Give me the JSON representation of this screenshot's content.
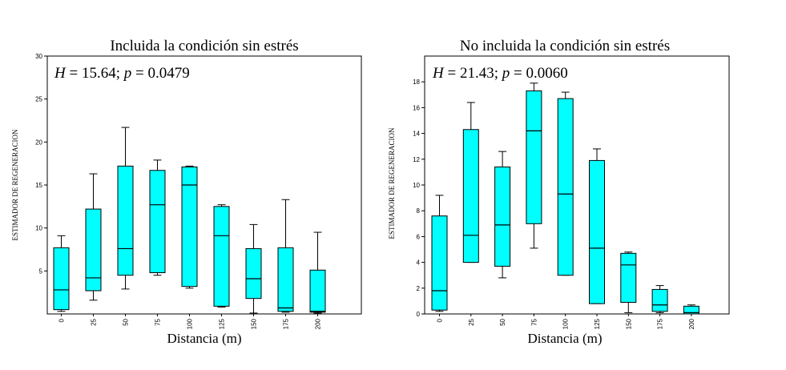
{
  "chart_data": [
    {
      "type": "boxplot",
      "title": "Incluida la condición sin estrés",
      "stat_H": "15.64",
      "stat_p": "0.0479",
      "xlabel": "Distancia  (m)",
      "ylabel": "ESTIMADOR DE REGENERACION",
      "ylim": [
        0,
        30
      ],
      "yticks": [
        5,
        10,
        15,
        20,
        25,
        30
      ],
      "categories": [
        "0",
        "25",
        "50",
        "75",
        "100",
        "125",
        "150",
        "175",
        "200"
      ],
      "boxes": [
        {
          "min": 0.3,
          "q1": 0.5,
          "median": 2.8,
          "q3": 7.7,
          "max": 9.1
        },
        {
          "min": 1.6,
          "q1": 2.7,
          "median": 4.2,
          "q3": 12.2,
          "max": 16.3
        },
        {
          "min": 2.9,
          "q1": 4.5,
          "median": 7.6,
          "q3": 17.2,
          "max": 21.7
        },
        {
          "min": 4.5,
          "q1": 4.8,
          "median": 12.7,
          "q3": 16.7,
          "max": 17.9
        },
        {
          "min": 3.0,
          "q1": 3.2,
          "median": 15.0,
          "q3": 17.1,
          "max": 17.2
        },
        {
          "min": 0.8,
          "q1": 0.9,
          "median": 9.1,
          "q3": 12.5,
          "max": 12.7
        },
        {
          "min": 0.1,
          "q1": 1.8,
          "median": 4.1,
          "q3": 7.6,
          "max": 10.4
        },
        {
          "min": 0.2,
          "q1": 0.3,
          "median": 0.7,
          "q3": 7.7,
          "max": 13.3
        },
        {
          "min": 0.1,
          "q1": 0.2,
          "median": 0.3,
          "q3": 5.1,
          "max": 9.5
        }
      ]
    },
    {
      "type": "boxplot",
      "title": "No incluida la condición sin estrés",
      "stat_H": "21.43",
      "stat_p": "0.0060",
      "xlabel": "Distancia  (m)",
      "ylabel": "ESTIMADOR DE REGENERACION",
      "ylim": [
        0,
        20
      ],
      "yticks": [
        0,
        2,
        4,
        6,
        8,
        10,
        12,
        14,
        16,
        18
      ],
      "categories": [
        "0",
        "25",
        "50",
        "75",
        "100",
        "125",
        "150",
        "175",
        "200"
      ],
      "boxes": [
        {
          "min": 0.2,
          "q1": 0.3,
          "median": 1.8,
          "q3": 7.6,
          "max": 9.2
        },
        {
          "min": 4.0,
          "q1": 4.0,
          "median": 6.1,
          "q3": 14.3,
          "max": 16.4
        },
        {
          "min": 2.8,
          "q1": 3.7,
          "median": 6.9,
          "q3": 11.4,
          "max": 12.6
        },
        {
          "min": 5.1,
          "q1": 7.0,
          "median": 14.2,
          "q3": 17.3,
          "max": 17.9
        },
        {
          "min": 3.0,
          "q1": 3.0,
          "median": 9.3,
          "q3": 16.7,
          "max": 17.2
        },
        {
          "min": 0.8,
          "q1": 0.8,
          "median": 5.1,
          "q3": 11.9,
          "max": 12.8
        },
        {
          "min": 0.1,
          "q1": 0.9,
          "median": 3.8,
          "q3": 4.7,
          "max": 4.8
        },
        {
          "min": 0.1,
          "q1": 0.2,
          "median": 0.7,
          "q3": 1.9,
          "max": 2.2
        },
        {
          "min": 0.0,
          "q1": 0.0,
          "median": 0.1,
          "q3": 0.6,
          "max": 0.7
        }
      ]
    }
  ],
  "colors": {
    "box_fill": "#00FFFF",
    "stroke": "#000000"
  }
}
